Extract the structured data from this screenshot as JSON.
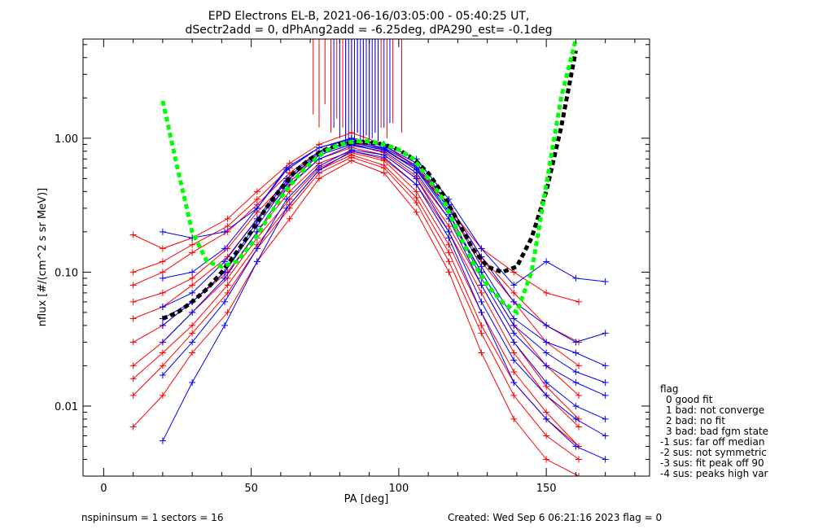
{
  "chart_data": {
    "type": "line",
    "title": "EPD Electrons EL-B, 2021-06-16/03:05:00 - 05:40:25 UT,",
    "subtitle": "dSectr2add = 0, dPhAng2add = -6.25deg, dPA290_est=  -0.1deg",
    "xlabel": "PA [deg]",
    "ylabel": "nflux [#/(cm^2 s sr MeV)]",
    "xlim": [
      -7,
      185
    ],
    "ylim": [
      0.003,
      5.5
    ],
    "yscale": "log",
    "x_ticks": [
      {
        "value": 0,
        "label": "0"
      },
      {
        "value": 50,
        "label": "50"
      },
      {
        "value": 100,
        "label": "100"
      },
      {
        "value": 150,
        "label": "150"
      }
    ],
    "y_ticks": [
      {
        "value": 0.01,
        "label": "0.01"
      },
      {
        "value": 0.1,
        "label": "0.10"
      },
      {
        "value": 1.0,
        "label": "1.00"
      }
    ],
    "colors": {
      "red_series": "#ff0000",
      "blue_series": "#0000ff",
      "green_fit": "#00ff00",
      "black_fit": "#000000"
    },
    "series": [
      {
        "style": "red-crosses",
        "samples": [
          {
            "x": [
              10,
              20,
              30,
              42,
              52,
              63,
              73,
              84,
              95,
              106,
              117,
              128,
              139,
              150,
              161
            ],
            "y": [
              0.045,
              0.055,
              0.08,
              0.13,
              0.25,
              0.45,
              0.7,
              0.85,
              0.75,
              0.5,
              0.22,
              0.08,
              0.03,
              0.014,
              0.008
            ]
          },
          {
            "x": [
              10,
              20,
              30,
              42,
              52,
              63,
              73,
              84,
              95,
              106,
              117,
              128,
              139,
              150,
              161
            ],
            "y": [
              0.02,
              0.03,
              0.05,
              0.09,
              0.18,
              0.35,
              0.6,
              0.78,
              0.68,
              0.4,
              0.16,
              0.05,
              0.018,
              0.009,
              0.005
            ]
          },
          {
            "x": [
              10,
              20,
              30,
              42,
              52,
              63,
              73,
              84,
              95,
              106,
              117,
              128,
              139,
              150,
              161
            ],
            "y": [
              0.08,
              0.1,
              0.14,
              0.2,
              0.32,
              0.55,
              0.8,
              0.95,
              0.82,
              0.58,
              0.3,
              0.12,
              0.06,
              0.03,
              0.02
            ]
          },
          {
            "x": [
              10,
              20,
              30,
              42,
              52,
              63,
              73,
              84,
              95,
              106,
              117,
              128,
              139,
              150,
              161
            ],
            "y": [
              0.012,
              0.02,
              0.035,
              0.07,
              0.15,
              0.3,
              0.55,
              0.72,
              0.6,
              0.33,
              0.12,
              0.035,
              0.012,
              0.006,
              0.004
            ]
          },
          {
            "x": [
              10,
              20,
              30,
              42,
              52,
              63,
              73,
              84,
              95,
              106,
              117,
              128,
              139,
              150,
              161
            ],
            "y": [
              0.19,
              0.15,
              0.18,
              0.25,
              0.4,
              0.65,
              0.9,
              1.1,
              0.9,
              0.6,
              0.3,
              0.15,
              0.1,
              0.07,
              0.06
            ]
          },
          {
            "x": [
              10,
              20,
              30,
              42,
              52,
              63,
              73,
              84,
              95,
              106,
              117,
              128,
              139,
              150,
              161
            ],
            "y": [
              0.03,
              0.04,
              0.06,
              0.1,
              0.2,
              0.4,
              0.65,
              0.8,
              0.7,
              0.45,
              0.2,
              0.07,
              0.025,
              0.012,
              0.007
            ]
          },
          {
            "x": [
              10,
              20,
              30,
              42,
              52,
              63,
              73,
              84,
              95,
              106,
              117,
              128,
              139,
              150,
              161
            ],
            "y": [
              0.06,
              0.07,
              0.09,
              0.15,
              0.28,
              0.5,
              0.75,
              0.9,
              0.78,
              0.52,
              0.25,
              0.1,
              0.04,
              0.02,
              0.012
            ]
          },
          {
            "x": [
              10,
              20,
              30,
              42,
              52,
              63,
              73,
              84,
              95,
              106,
              117,
              128,
              139,
              150,
              161
            ],
            "y": [
              0.007,
              0.012,
              0.025,
              0.05,
              0.12,
              0.25,
              0.5,
              0.68,
              0.55,
              0.28,
              0.1,
              0.025,
              0.008,
              0.004,
              0.003
            ]
          },
          {
            "x": [
              10,
              20,
              30,
              42,
              52,
              63,
              73,
              84,
              95,
              106,
              117,
              128,
              139,
              150,
              161
            ],
            "y": [
              0.1,
              0.12,
              0.16,
              0.22,
              0.35,
              0.6,
              0.85,
              1.0,
              0.88,
              0.62,
              0.32,
              0.13,
              0.07,
              0.04,
              0.03
            ]
          },
          {
            "x": [
              10,
              20,
              30,
              42,
              52,
              63,
              73,
              84,
              95,
              106,
              117,
              128,
              139,
              150,
              161
            ],
            "y": [
              0.016,
              0.025,
              0.04,
              0.08,
              0.16,
              0.32,
              0.58,
              0.75,
              0.63,
              0.36,
              0.14,
              0.04,
              0.015,
              0.008,
              0.005
            ]
          }
        ]
      },
      {
        "style": "blue-crosses",
        "samples": [
          {
            "x": [
              20,
              30,
              41,
              52,
              62,
              73,
              84,
              95,
              106,
              117,
              128,
              139,
              150,
              160,
              170
            ],
            "y": [
              0.04,
              0.06,
              0.1,
              0.22,
              0.45,
              0.75,
              0.9,
              0.82,
              0.6,
              0.28,
              0.09,
              0.035,
              0.02,
              0.015,
              0.012
            ]
          },
          {
            "x": [
              20,
              30,
              41,
              52,
              62,
              73,
              84,
              95,
              106,
              117,
              128,
              139,
              150,
              160,
              170
            ],
            "y": [
              0.03,
              0.05,
              0.09,
              0.2,
              0.42,
              0.7,
              0.88,
              0.8,
              0.55,
              0.25,
              0.08,
              0.03,
              0.015,
              0.01,
              0.008
            ]
          },
          {
            "x": [
              20,
              30,
              41,
              52,
              62,
              73,
              84,
              95,
              106,
              117,
              128,
              139,
              150,
              160,
              170
            ],
            "y": [
              0.2,
              0.18,
              0.2,
              0.3,
              0.6,
              0.85,
              1.0,
              0.9,
              0.7,
              0.35,
              0.15,
              0.08,
              0.12,
              0.09,
              0.085
            ]
          },
          {
            "x": [
              20,
              30,
              41,
              52,
              62,
              73,
              84,
              95,
              106,
              117,
              128,
              139,
              150,
              160,
              170
            ],
            "y": [
              0.055,
              0.07,
              0.12,
              0.25,
              0.5,
              0.8,
              0.95,
              0.85,
              0.62,
              0.3,
              0.11,
              0.045,
              0.03,
              0.025,
              0.02
            ]
          },
          {
            "x": [
              20,
              30,
              41,
              52,
              62,
              73,
              84,
              95,
              106,
              117,
              128,
              139,
              150,
              160,
              170
            ],
            "y": [
              0.017,
              0.03,
              0.06,
              0.15,
              0.35,
              0.62,
              0.82,
              0.75,
              0.5,
              0.2,
              0.06,
              0.022,
              0.012,
              0.008,
              0.006
            ]
          },
          {
            "x": [
              20,
              30,
              41,
              52,
              62,
              73,
              84,
              95,
              106,
              117,
              128,
              139,
              150,
              160,
              170
            ],
            "y": [
              0.09,
              0.1,
              0.15,
              0.3,
              0.58,
              0.85,
              0.98,
              0.88,
              0.65,
              0.32,
              0.13,
              0.06,
              0.04,
              0.03,
              0.035
            ]
          },
          {
            "x": [
              20,
              30,
              41,
              52,
              62,
              73,
              84,
              95,
              106,
              117,
              128,
              139,
              150,
              160,
              170
            ],
            "y": [
              0.0055,
              0.015,
              0.04,
              0.12,
              0.3,
              0.58,
              0.8,
              0.72,
              0.45,
              0.18,
              0.05,
              0.015,
              0.008,
              0.005,
              0.004
            ]
          },
          {
            "x": [
              20,
              30,
              41,
              52,
              62,
              73,
              84,
              95,
              106,
              117,
              128,
              139,
              150,
              160,
              170
            ],
            "y": [
              0.045,
              0.06,
              0.1,
              0.24,
              0.48,
              0.78,
              0.92,
              0.84,
              0.58,
              0.27,
              0.1,
              0.04,
              0.025,
              0.018,
              0.015
            ]
          }
        ]
      },
      {
        "style": "green-dashed-fit",
        "x": [
          20,
          25,
          30,
          35,
          40,
          45,
          50,
          55,
          60,
          65,
          70,
          75,
          80,
          85,
          90,
          95,
          100,
          105,
          110,
          115,
          120,
          125,
          130,
          135,
          140,
          145,
          150,
          155,
          160
        ],
        "y": [
          1.9,
          0.6,
          0.2,
          0.12,
          0.11,
          0.12,
          0.16,
          0.24,
          0.36,
          0.5,
          0.65,
          0.8,
          0.9,
          0.95,
          0.95,
          0.9,
          0.82,
          0.7,
          0.5,
          0.35,
          0.2,
          0.12,
          0.08,
          0.06,
          0.05,
          0.1,
          0.45,
          2.0,
          5.5
        ]
      },
      {
        "style": "black-dashed-fit",
        "x": [
          20,
          25,
          30,
          35,
          40,
          45,
          50,
          55,
          60,
          65,
          70,
          75,
          80,
          85,
          90,
          95,
          100,
          105,
          110,
          115,
          120,
          125,
          130,
          135,
          140,
          145,
          150,
          155,
          160
        ],
        "y": [
          0.045,
          0.05,
          0.06,
          0.075,
          0.1,
          0.14,
          0.2,
          0.3,
          0.42,
          0.57,
          0.7,
          0.82,
          0.9,
          0.93,
          0.93,
          0.9,
          0.82,
          0.7,
          0.55,
          0.38,
          0.24,
          0.15,
          0.11,
          0.1,
          0.11,
          0.18,
          0.4,
          1.2,
          4.5
        ]
      },
      {
        "style": "vertical-spikes",
        "red_x": [
          71,
          73,
          75,
          77,
          79,
          81,
          82,
          84,
          86,
          88,
          90,
          92,
          94,
          96,
          98,
          101
        ],
        "red_bottom": [
          1.5,
          1.2,
          1.8,
          1.1,
          1.4,
          1.2,
          1.0,
          1.3,
          1.1,
          0.9,
          1.0,
          1.1,
          1.2,
          1.0,
          1.3,
          1.1
        ],
        "blue_x": [
          78,
          80,
          82,
          83,
          84,
          85,
          86,
          87,
          88,
          89,
          90,
          91,
          92,
          93,
          95,
          97
        ],
        "blue_bottom": [
          1.2,
          1.0,
          0.9,
          0.95,
          1.0,
          0.9,
          1.1,
          0.95,
          1.0,
          1.05,
          0.9,
          1.0,
          1.1,
          0.95,
          1.2,
          1.3
        ]
      }
    ]
  },
  "legend": {
    "title": "flag",
    "items": [
      "0 good fit",
      "1 bad: not converge",
      "2 bad: no fit",
      "3 bad: bad fgm state",
      "-1 sus: far off median",
      "-2 sus: not symmetric",
      "-3 sus: fit peak off 90",
      "-4 sus: peaks high var"
    ]
  },
  "footer": {
    "left": "nspininsum =  1  sectors = 16",
    "right": "Created: Wed Sep  6 06:21:16 2023   flag = 0"
  }
}
